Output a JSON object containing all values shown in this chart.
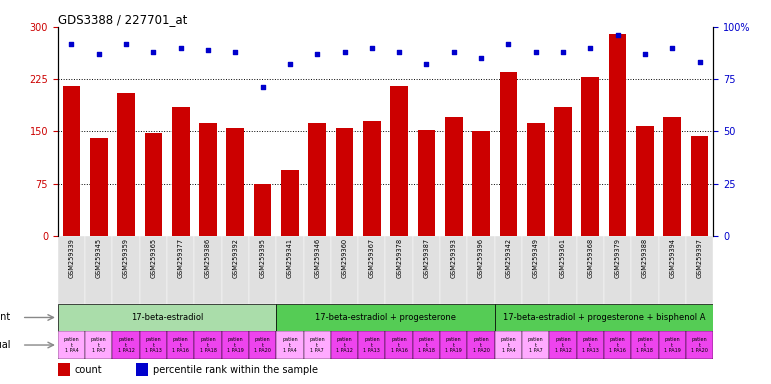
{
  "title": "GDS3388 / 227701_at",
  "gsm_ids": [
    "GSM259339",
    "GSM259345",
    "GSM259359",
    "GSM259365",
    "GSM259377",
    "GSM259386",
    "GSM259392",
    "GSM259395",
    "GSM259341",
    "GSM259346",
    "GSM259360",
    "GSM259367",
    "GSM259378",
    "GSM259387",
    "GSM259393",
    "GSM259396",
    "GSM259342",
    "GSM259349",
    "GSM259361",
    "GSM259368",
    "GSM259379",
    "GSM259388",
    "GSM259394",
    "GSM259397"
  ],
  "counts": [
    215,
    140,
    205,
    148,
    185,
    162,
    155,
    75,
    95,
    162,
    155,
    165,
    215,
    152,
    170,
    150,
    235,
    162,
    185,
    228,
    290,
    158,
    170,
    143
  ],
  "percentile_ranks": [
    92,
    87,
    92,
    88,
    90,
    89,
    88,
    71,
    82,
    87,
    88,
    90,
    88,
    82,
    88,
    85,
    92,
    88,
    88,
    90,
    96,
    87,
    90,
    83
  ],
  "bar_color": "#cc0000",
  "dot_color": "#0000cc",
  "ylim_left": [
    0,
    300
  ],
  "ylim_right": [
    0,
    100
  ],
  "yticks_left": [
    0,
    75,
    150,
    225,
    300
  ],
  "yticks_right": [
    0,
    25,
    50,
    75,
    100
  ],
  "agent_groups": [
    {
      "label": "17-beta-estradiol",
      "start": 0,
      "end": 8,
      "color": "#aaddaa"
    },
    {
      "label": "17-beta-estradiol + progesterone",
      "start": 8,
      "end": 16,
      "color": "#55cc55"
    },
    {
      "label": "17-beta-estradiol + progesterone + bisphenol A",
      "start": 16,
      "end": 24,
      "color": "#55cc55"
    }
  ],
  "individual_labels": [
    "patien\nt\n1 PA4",
    "patien\nt\n1 PA7",
    "patien\nt\n1 PA12",
    "patien\nt\n1 PA13",
    "patien\nt\n1 PA16",
    "patien\nt\n1 PA18",
    "patien\nt\n1 PA19",
    "patien\nt\n1 PA20",
    "patien\nt\n1 PA4",
    "patien\nt\n1 PA7",
    "patien\nt\n1 PA12",
    "patien\nt\n1 PA13",
    "patien\nt\n1 PA16",
    "patien\nt\n1 PA18",
    "patien\nt\n1 PA19",
    "patien\nt\n1 PA20",
    "patien\nt\n1 PA4",
    "patien\nt\n1 PA7",
    "patien\nt\n1 PA12",
    "patien\nt\n1 PA13",
    "patien\nt\n1 PA16",
    "patien\nt\n1 PA18",
    "patien\nt\n1 PA19",
    "patien\nt\n1 PA20"
  ],
  "individual_colors_light": "#ffaaff",
  "individual_colors_dark": "#ee44ee",
  "individual_dark_indices": [
    2,
    3,
    4,
    5,
    6,
    7,
    10,
    11,
    12,
    13,
    14,
    15,
    18,
    19,
    20,
    21,
    22,
    23
  ],
  "legend_items": [
    {
      "color": "#cc0000",
      "label": "count"
    },
    {
      "color": "#0000cc",
      "label": "percentile rank within the sample"
    }
  ],
  "bg_color": "#ffffff",
  "xticklabels_bg": "#dddddd"
}
